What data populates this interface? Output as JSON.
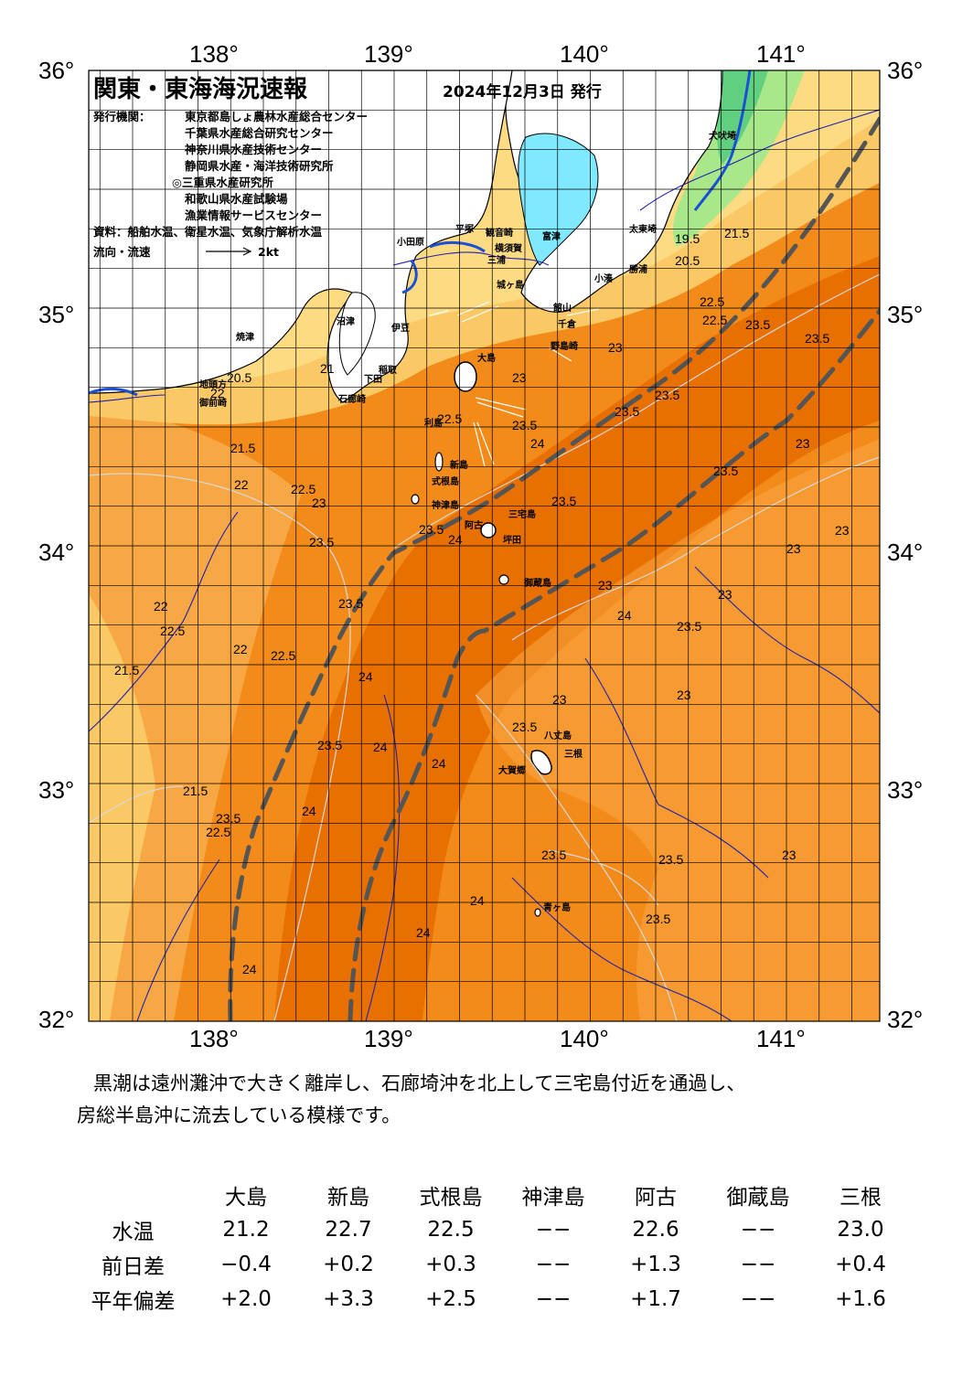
{
  "header": {
    "title": "関東・東海海況速報",
    "date": "2024年12月3日 発行",
    "issuer_label": "発行機関：",
    "issuers": [
      "東京都島しょ農林水産総合センター",
      "千葉県水産総合研究センター",
      "神奈川県水産技術センター",
      "静岡県水産・海洋技術研究所",
      "◎三重県水産研究所",
      "和歌山県水産試験場",
      "漁業情報サービスセンター"
    ],
    "source": "資料：船舶水温、衛星水温、気象庁解析水温",
    "current_label": "流向・流速",
    "current_scale": "2kt"
  },
  "map": {
    "lon_ticks": [
      "138°",
      "139°",
      "140°",
      "141°"
    ],
    "lat_ticks": [
      "36°",
      "35°",
      "34°",
      "33°",
      "32°"
    ],
    "colors": {
      "deep": "#e87000",
      "warm": "#f38b1a",
      "mid": "#f7a845",
      "light": "#fbc866",
      "pale": "#fde08a",
      "cool": "#a8e88a",
      "cold": "#60d080",
      "lake": "#80e8ff",
      "kuroshio_axis": "#555555",
      "contour_dark": "#2020b0",
      "contour_light": "#d8d8d8"
    },
    "places": [
      {
        "id": "inubozaki",
        "name": "犬吠埼"
      },
      {
        "id": "taitomisaki",
        "name": "太東埼"
      },
      {
        "id": "katsuura",
        "name": "勝浦"
      },
      {
        "id": "kominato",
        "name": "小湊"
      },
      {
        "id": "tateyama",
        "name": "館山"
      },
      {
        "id": "chikura",
        "name": "千倉"
      },
      {
        "id": "nojimazaki",
        "name": "野島崎"
      },
      {
        "id": "tomiura",
        "name": "富津"
      },
      {
        "id": "kannonzaki",
        "name": "観音崎"
      },
      {
        "id": "jogashima",
        "name": "城ヶ島"
      },
      {
        "id": "yokosuka",
        "name": "横須賀"
      },
      {
        "id": "hiratsuka",
        "name": "平塚"
      },
      {
        "id": "odawara",
        "name": "小田原"
      },
      {
        "id": "miura",
        "name": "三浦"
      },
      {
        "id": "izu",
        "name": "伊豆"
      },
      {
        "id": "numazu",
        "name": "沼津"
      },
      {
        "id": "yaizu",
        "name": "焼津"
      },
      {
        "id": "omaezaki",
        "name": "御前崎"
      },
      {
        "id": "chikyu",
        "name": "地頭方"
      },
      {
        "id": "inatori",
        "name": "稲取"
      },
      {
        "id": "shimoda",
        "name": "下田"
      },
      {
        "id": "ooshima",
        "name": "大島"
      },
      {
        "id": "toshima",
        "name": "利島"
      },
      {
        "id": "niijima",
        "name": "新島"
      },
      {
        "id": "shikinejima",
        "name": "式根島"
      },
      {
        "id": "kozushima",
        "name": "神津島"
      },
      {
        "id": "miyakejima",
        "name": "三宅島"
      },
      {
        "id": "ako",
        "name": "阿古"
      },
      {
        "id": "tsubota",
        "name": "坪田"
      },
      {
        "id": "mikurajima",
        "name": "御蔵島"
      },
      {
        "id": "hachijojima",
        "name": "八丈島"
      },
      {
        "id": "okago",
        "name": "大賀郷"
      },
      {
        "id": "mitsune",
        "name": "三根"
      },
      {
        "id": "aogashima",
        "name": "青ヶ島"
      },
      {
        "id": "irouzaki",
        "name": "石廊崎"
      }
    ],
    "contour_labels": [
      {
        "id": "c1",
        "text": "19.5"
      },
      {
        "id": "c2",
        "text": "20.5"
      },
      {
        "id": "c3",
        "text": "21.5"
      },
      {
        "id": "c4",
        "text": "22.5"
      },
      {
        "id": "c5",
        "text": "22.5"
      },
      {
        "id": "c6",
        "text": "23.5"
      },
      {
        "id": "c7",
        "text": "23.5"
      },
      {
        "id": "c8",
        "text": "23"
      },
      {
        "id": "c9",
        "text": "23.5"
      },
      {
        "id": "c10",
        "text": "23"
      },
      {
        "id": "c11",
        "text": "21"
      },
      {
        "id": "c12",
        "text": "22"
      },
      {
        "id": "c13",
        "text": "20.5"
      },
      {
        "id": "c14",
        "text": "22.5"
      },
      {
        "id": "c15",
        "text": "21.5"
      },
      {
        "id": "c16",
        "text": "22"
      },
      {
        "id": "c17",
        "text": "22.5"
      },
      {
        "id": "c18",
        "text": "23"
      },
      {
        "id": "c19",
        "text": "23.5"
      },
      {
        "id": "c20",
        "text": "23.5"
      },
      {
        "id": "c21",
        "text": "24"
      },
      {
        "id": "c22",
        "text": "23.5"
      },
      {
        "id": "c23",
        "text": "22"
      },
      {
        "id": "c24",
        "text": "22.5"
      },
      {
        "id": "c25",
        "text": "21.5"
      },
      {
        "id": "c26",
        "text": "22"
      },
      {
        "id": "c27",
        "text": "22.5"
      },
      {
        "id": "c28",
        "text": "23.5"
      },
      {
        "id": "c29",
        "text": "24"
      },
      {
        "id": "c30",
        "text": "23.5"
      },
      {
        "id": "c31",
        "text": "24"
      },
      {
        "id": "c32",
        "text": "23.5"
      },
      {
        "id": "c33",
        "text": "23"
      },
      {
        "id": "c34",
        "text": "23.5"
      },
      {
        "id": "c35",
        "text": "23"
      },
      {
        "id": "c36",
        "text": "23.5"
      },
      {
        "id": "c37",
        "text": "23"
      },
      {
        "id": "c38",
        "text": "24"
      },
      {
        "id": "c39",
        "text": "23"
      },
      {
        "id": "c40",
        "text": "23.5"
      },
      {
        "id": "c41",
        "text": "23"
      },
      {
        "id": "c42",
        "text": "23.5"
      },
      {
        "id": "c43",
        "text": "24"
      },
      {
        "id": "c44",
        "text": "24"
      },
      {
        "id": "c45",
        "text": "21.5"
      },
      {
        "id": "c46",
        "text": "22.5"
      },
      {
        "id": "c47",
        "text": "23.5"
      },
      {
        "id": "c48",
        "text": "24"
      },
      {
        "id": "c49",
        "text": "23.5"
      },
      {
        "id": "c50",
        "text": "23"
      },
      {
        "id": "c51",
        "text": "24"
      },
      {
        "id": "c52",
        "text": "23.5"
      },
      {
        "id": "c53",
        "text": "23"
      },
      {
        "id": "c54",
        "text": "24"
      },
      {
        "id": "c55",
        "text": "23.5"
      },
      {
        "id": "c56",
        "text": "24"
      },
      {
        "id": "c57",
        "text": "23"
      }
    ]
  },
  "summary": {
    "line1": "黒潮は遠州灘沖で大きく離岸し、石廊埼沖を北上して三宅島付近を通過し、",
    "line2": "房総半島沖に流去している模様です。"
  },
  "stats": {
    "columns": [
      "大島",
      "新島",
      "式根島",
      "神津島",
      "阿古",
      "御蔵島",
      "三根"
    ],
    "rows": [
      {
        "label": "水温",
        "values": [
          "21.2",
          "22.7",
          "22.5",
          "−−",
          "22.6",
          "−−",
          "23.0"
        ]
      },
      {
        "label": "前日差",
        "values": [
          "−0.4",
          "+0.2",
          "+0.3",
          "−−",
          "+1.3",
          "−−",
          "+0.4"
        ]
      },
      {
        "label": "平年偏差",
        "values": [
          "+2.0",
          "+3.3",
          "+2.5",
          "−−",
          "+1.7",
          "−−",
          "+1.6"
        ]
      }
    ]
  }
}
